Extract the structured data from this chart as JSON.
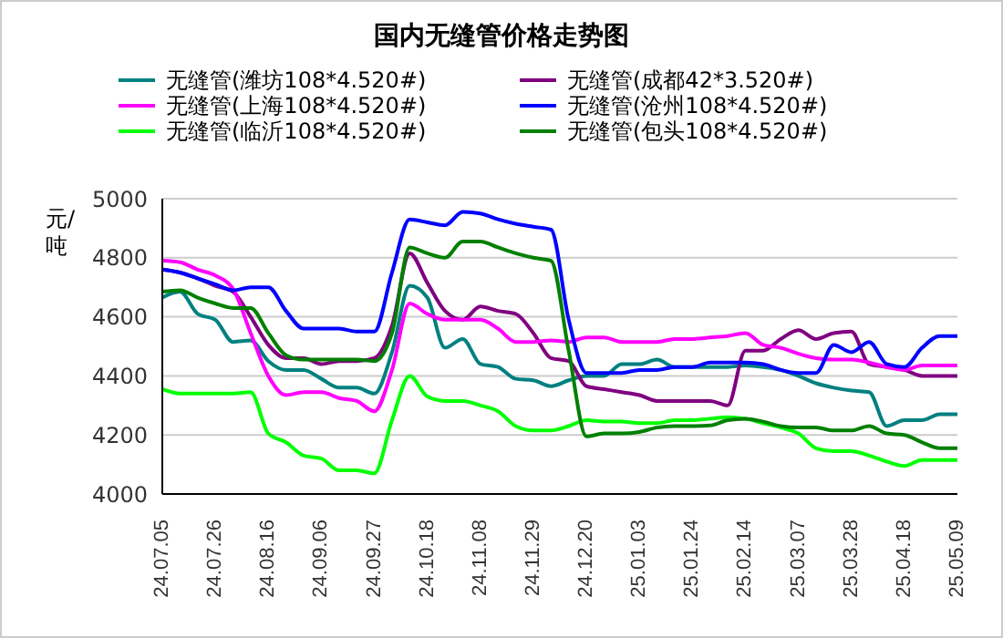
{
  "chart_data": {
    "type": "line",
    "title": "国内无缝管价格走势图",
    "ylabel": "元/吨",
    "categories": [
      "24.07.05",
      null,
      null,
      "24.07.26",
      null,
      null,
      "24.08.16",
      null,
      null,
      "24.09.06",
      null,
      null,
      "24.09.27",
      null,
      null,
      "24.10.18",
      null,
      null,
      "24.11.08",
      null,
      null,
      "24.11.29",
      null,
      null,
      "24.12.20",
      null,
      null,
      "25.01.03",
      null,
      null,
      "25.01.24",
      null,
      null,
      "25.02.14",
      null,
      null,
      "25.03.07",
      null,
      null,
      "25.03.28",
      null,
      null,
      "25.04.18",
      null,
      null,
      "25.05.09"
    ],
    "series": [
      {
        "name": "无缝管(潍坊108*4.520#)",
        "color": "#008080",
        "values": [
          4665,
          4685,
          4610,
          4590,
          4515,
          4520,
          4450,
          4420,
          4420,
          4390,
          4360,
          4360,
          4340,
          4480,
          4705,
          4665,
          4495,
          4525,
          4440,
          4430,
          4390,
          4385,
          4365,
          4385,
          4400,
          4400,
          4440,
          4440,
          4455,
          4430,
          4430,
          4430,
          4430,
          4435,
          4430,
          4420,
          4400,
          4375,
          4360,
          4350,
          4345,
          4230,
          4250,
          4250,
          4270,
          4270
        ]
      },
      {
        "name": "无缝管(成都42*3.520#)",
        "color": "#800080",
        "values": [
          4760,
          4750,
          4730,
          4705,
          4685,
          4600,
          4505,
          4460,
          4460,
          4440,
          4450,
          4450,
          4460,
          4570,
          4815,
          4715,
          4620,
          4590,
          4635,
          4620,
          4610,
          4545,
          4460,
          4450,
          4365,
          4355,
          4345,
          4335,
          4315,
          4315,
          4315,
          4315,
          4300,
          4485,
          4485,
          4525,
          4555,
          4525,
          4545,
          4550,
          4440,
          4430,
          4420,
          4400,
          4400,
          4400
        ]
      },
      {
        "name": "无缝管(上海108*4.520#)",
        "color": "#ff00ff",
        "values": [
          4790,
          4785,
          4760,
          4740,
          4695,
          4545,
          4400,
          4335,
          4345,
          4345,
          4325,
          4315,
          4280,
          4420,
          4645,
          4610,
          4590,
          4590,
          4590,
          4560,
          4515,
          4515,
          4520,
          4515,
          4530,
          4530,
          4515,
          4515,
          4515,
          4525,
          4525,
          4530,
          4535,
          4545,
          4505,
          4495,
          4475,
          4460,
          4455,
          4455,
          4445,
          4430,
          4420,
          4435,
          4435,
          4435
        ]
      },
      {
        "name": "无缝管(沧州108*4.520#)",
        "color": "#0000ff",
        "values": [
          4760,
          4750,
          4730,
          4710,
          4690,
          4700,
          4700,
          4620,
          4560,
          4560,
          4560,
          4550,
          4550,
          4750,
          4930,
          4920,
          4910,
          4955,
          4950,
          4930,
          4915,
          4905,
          4895,
          4590,
          4410,
          4410,
          4410,
          4420,
          4420,
          4430,
          4430,
          4445,
          4445,
          4445,
          4440,
          4420,
          4410,
          4410,
          4505,
          4480,
          4515,
          4440,
          4430,
          4495,
          4535,
          4535
        ]
      },
      {
        "name": "无缝管(临沂108*4.520#)",
        "color": "#00ff00",
        "values": [
          4355,
          4340,
          4340,
          4340,
          4340,
          4345,
          4205,
          4175,
          4130,
          4120,
          4080,
          4080,
          4070,
          4250,
          4400,
          4330,
          4315,
          4315,
          4300,
          4280,
          4230,
          4215,
          4215,
          4230,
          4250,
          4245,
          4245,
          4240,
          4240,
          4250,
          4250,
          4255,
          4260,
          4255,
          4240,
          4225,
          4205,
          4155,
          4145,
          4145,
          4130,
          4110,
          4095,
          4115,
          4115,
          4115
        ]
      },
      {
        "name": "无缝管(包头108*4.520#)",
        "color": "#008000",
        "values": [
          4685,
          4690,
          4665,
          4645,
          4630,
          4630,
          4545,
          4470,
          4455,
          4455,
          4455,
          4455,
          4450,
          4545,
          4835,
          4815,
          4800,
          4855,
          4855,
          4835,
          4815,
          4800,
          4790,
          4485,
          4195,
          4205,
          4205,
          4210,
          4225,
          4230,
          4230,
          4232,
          4250,
          4255,
          4245,
          4230,
          4225,
          4225,
          4215,
          4215,
          4230,
          4205,
          4200,
          4175,
          4155,
          4155
        ]
      }
    ],
    "ylim": [
      4000,
      5000
    ],
    "yticks": [
      4000,
      4200,
      4400,
      4600,
      4800,
      5000
    ],
    "grid": "y",
    "legend": "top",
    "marker": "none",
    "line_style": "solid"
  }
}
